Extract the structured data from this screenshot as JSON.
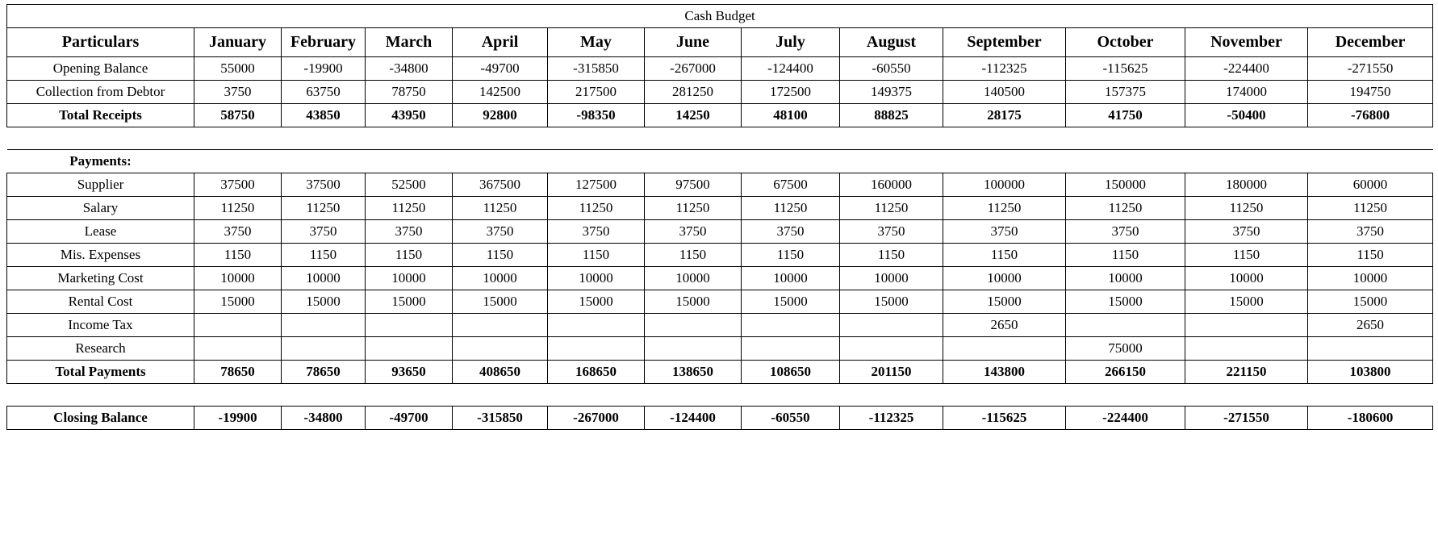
{
  "title": "Cash Budget",
  "table": {
    "header": [
      "Particulars",
      "January",
      "February",
      "March",
      "April",
      "May",
      "June",
      "July",
      "August",
      "September",
      "October",
      "November",
      "December"
    ],
    "rows": [
      {
        "type": "data",
        "label": "Opening Balance",
        "values": [
          "55000",
          "-19900",
          "-34800",
          "-49700",
          "-315850",
          "-267000",
          "-124400",
          "-60550",
          "-112325",
          "-115625",
          "-224400",
          "-271550"
        ]
      },
      {
        "type": "data",
        "label": "Collection from Debtor",
        "values": [
          "3750",
          "63750",
          "78750",
          "142500",
          "217500",
          "281250",
          "172500",
          "149375",
          "140500",
          "157375",
          "174000",
          "194750"
        ]
      },
      {
        "type": "total",
        "label": "Total Receipts",
        "values": [
          "58750",
          "43850",
          "43950",
          "92800",
          "-98350",
          "14250",
          "48100",
          "88825",
          "28175",
          "41750",
          "-50400",
          "-76800"
        ]
      },
      {
        "type": "blank"
      },
      {
        "type": "section",
        "label": "Payments:",
        "values": [
          "",
          "",
          "",
          "",
          "",
          "",
          "",
          "",
          "",
          "",
          "",
          ""
        ]
      },
      {
        "type": "data",
        "label": "Supplier",
        "values": [
          "37500",
          "37500",
          "52500",
          "367500",
          "127500",
          "97500",
          "67500",
          "160000",
          "100000",
          "150000",
          "180000",
          "60000"
        ]
      },
      {
        "type": "data",
        "label": "Salary",
        "values": [
          "11250",
          "11250",
          "11250",
          "11250",
          "11250",
          "11250",
          "11250",
          "11250",
          "11250",
          "11250",
          "11250",
          "11250"
        ]
      },
      {
        "type": "data",
        "label": "Lease",
        "values": [
          "3750",
          "3750",
          "3750",
          "3750",
          "3750",
          "3750",
          "3750",
          "3750",
          "3750",
          "3750",
          "3750",
          "3750"
        ]
      },
      {
        "type": "data",
        "label": "Mis. Expenses",
        "values": [
          "1150",
          "1150",
          "1150",
          "1150",
          "1150",
          "1150",
          "1150",
          "1150",
          "1150",
          "1150",
          "1150",
          "1150"
        ]
      },
      {
        "type": "data",
        "label": "Marketing Cost",
        "values": [
          "10000",
          "10000",
          "10000",
          "10000",
          "10000",
          "10000",
          "10000",
          "10000",
          "10000",
          "10000",
          "10000",
          "10000"
        ]
      },
      {
        "type": "data",
        "label": "Rental Cost",
        "values": [
          "15000",
          "15000",
          "15000",
          "15000",
          "15000",
          "15000",
          "15000",
          "15000",
          "15000",
          "15000",
          "15000",
          "15000"
        ]
      },
      {
        "type": "data",
        "label": "Income Tax",
        "values": [
          "",
          "",
          "",
          "",
          "",
          "",
          "",
          "",
          "2650",
          "",
          "",
          "2650"
        ]
      },
      {
        "type": "data",
        "label": "Research",
        "values": [
          "",
          "",
          "",
          "",
          "",
          "",
          "",
          "",
          "",
          "75000",
          "",
          ""
        ]
      },
      {
        "type": "total",
        "label": "Total Payments",
        "values": [
          "78650",
          "78650",
          "93650",
          "408650",
          "168650",
          "138650",
          "108650",
          "201150",
          "143800",
          "266150",
          "221150",
          "103800"
        ]
      },
      {
        "type": "blank"
      },
      {
        "type": "total",
        "label": "Closing Balance",
        "values": [
          "-19900",
          "-34800",
          "-49700",
          "-315850",
          "-267000",
          "-124400",
          "-60550",
          "-112325",
          "-115625",
          "-224400",
          "-271550",
          "-180600"
        ]
      }
    ]
  }
}
